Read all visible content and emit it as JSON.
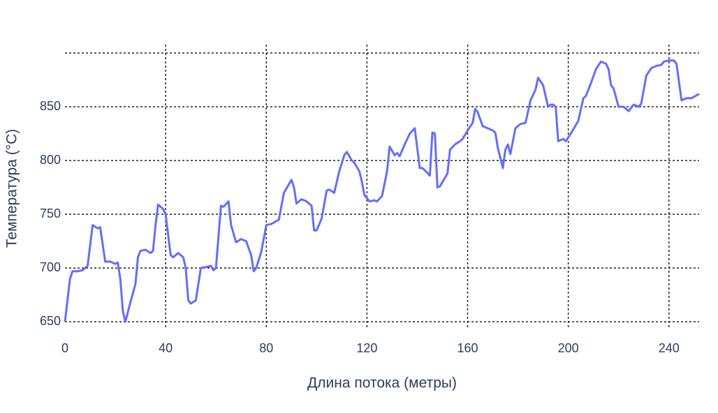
{
  "chart_data": {
    "type": "line",
    "xlabel": "Длина потока (метры)",
    "ylabel": "Температура (°C)",
    "x": [
      0,
      2,
      3,
      5,
      7,
      9,
      11,
      13,
      14,
      16,
      18,
      20,
      21,
      22,
      23,
      24,
      26,
      28,
      29,
      30,
      32,
      34,
      35,
      36,
      37,
      39,
      40,
      42,
      43,
      45,
      47,
      48,
      49,
      50,
      52,
      54,
      56,
      58,
      59,
      60,
      62,
      63,
      65,
      66,
      68,
      70,
      72,
      74,
      75,
      76,
      78,
      80,
      82,
      85,
      87,
      89,
      90,
      91,
      92,
      94,
      96,
      98,
      99,
      100,
      102,
      104,
      105,
      107,
      109,
      111,
      112,
      114,
      115,
      117,
      118,
      119,
      121,
      123,
      124,
      126,
      128,
      129,
      131,
      132,
      133,
      135,
      137,
      139,
      141,
      142,
      143,
      145,
      146,
      147,
      148,
      149,
      150,
      152,
      153,
      155,
      157,
      158,
      160,
      162,
      163,
      164,
      166,
      168,
      170,
      171,
      172,
      174,
      175,
      176,
      177,
      179,
      181,
      183,
      185,
      187,
      188,
      190,
      192,
      193,
      194,
      195,
      196,
      198,
      199,
      201,
      203,
      204,
      206,
      207,
      208,
      209,
      211,
      213,
      215,
      216,
      217,
      218,
      220,
      222,
      224,
      226,
      228,
      229,
      231,
      233,
      235,
      237,
      238,
      240,
      242,
      243,
      245,
      247,
      249,
      252
    ],
    "series": [
      {
        "color": "#636efa",
        "values": [
          650,
          690,
          697,
          697,
          698,
          702,
          740,
          737,
          738,
          706,
          706,
          704,
          705,
          690,
          660,
          650,
          668,
          685,
          710,
          716,
          717,
          714,
          716,
          740,
          759,
          755,
          750,
          712,
          710,
          714,
          710,
          700,
          670,
          667,
          670,
          700,
          701,
          702,
          698,
          700,
          758,
          757,
          762,
          740,
          724,
          727,
          725,
          712,
          697,
          700,
          715,
          740,
          741,
          745,
          770,
          778,
          782,
          775,
          760,
          764,
          762,
          758,
          735,
          735,
          746,
          772,
          773,
          770,
          790,
          805,
          808,
          800,
          798,
          790,
          780,
          768,
          762,
          763,
          762,
          767,
          790,
          813,
          805,
          807,
          804,
          815,
          825,
          830,
          793,
          793,
          791,
          786,
          826,
          825,
          775,
          776,
          780,
          788,
          810,
          815,
          818,
          820,
          828,
          835,
          848,
          845,
          832,
          830,
          828,
          826,
          812,
          793,
          810,
          815,
          806,
          830,
          834,
          835,
          856,
          866,
          877,
          870,
          850,
          852,
          852,
          850,
          818,
          820,
          818,
          825,
          833,
          837,
          858,
          860,
          866,
          872,
          885,
          892,
          890,
          885,
          870,
          867,
          850,
          850,
          846,
          852,
          850,
          853,
          879,
          886,
          888,
          889,
          892,
          893,
          893,
          890,
          856,
          858,
          858,
          862
        ]
      }
    ],
    "xlim": [
      0,
      252
    ],
    "ylim": [
      645,
      900
    ],
    "xticks": [
      0,
      40,
      80,
      120,
      160,
      200,
      240
    ],
    "yticks": [
      650,
      700,
      750,
      800,
      850
    ],
    "grid": true
  }
}
